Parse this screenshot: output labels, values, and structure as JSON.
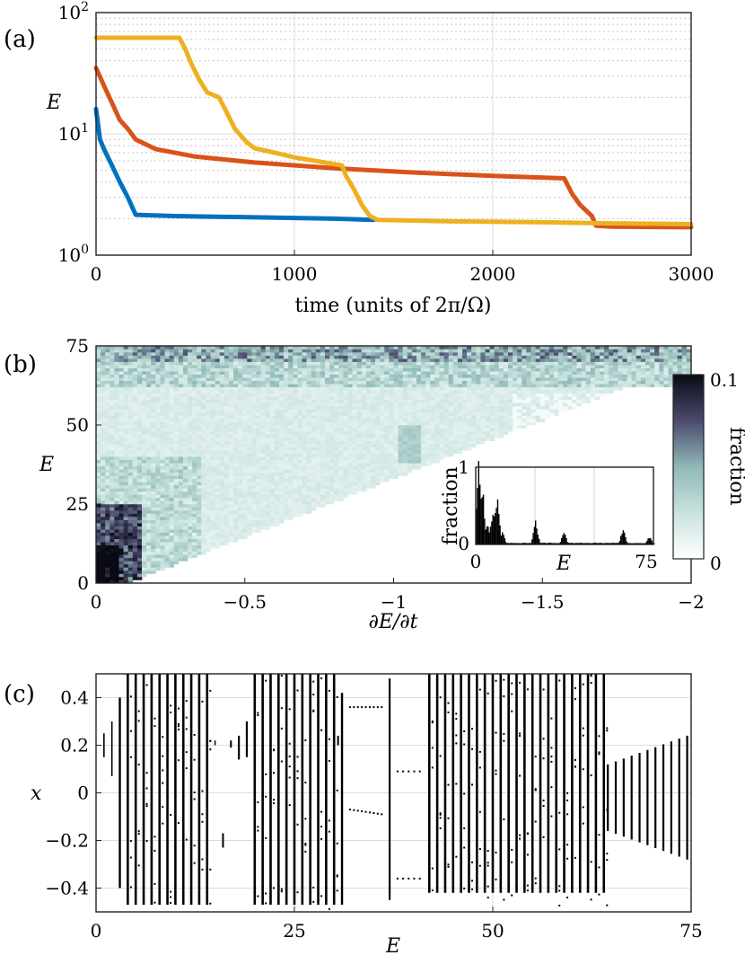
{
  "chart_data": [
    {
      "panel": "(a)",
      "type": "line",
      "xlabel": "time (units of 2π/Ω)",
      "ylabel": "E",
      "xlim": [
        0,
        3000
      ],
      "ylim": [
        1,
        100
      ],
      "yscale": "log",
      "grid": true,
      "x_ticks": [
        "0",
        "1000",
        "2000",
        "3000"
      ],
      "y_ticks": [
        {
          "base": "10",
          "exp": "0"
        },
        {
          "base": "10",
          "exp": "1"
        },
        {
          "base": "10",
          "exp": "2"
        }
      ],
      "series": [
        {
          "name": "blue",
          "color": "#0072bd",
          "x": [
            0,
            20,
            40,
            80,
            120,
            160,
            200,
            400,
            800,
            1200,
            1400
          ],
          "y": [
            16,
            9,
            7.5,
            5.5,
            4,
            3,
            2.15,
            2.1,
            2.05,
            2.0,
            1.95
          ]
        },
        {
          "name": "orange",
          "color": "#d95319",
          "x": [
            0,
            40,
            80,
            120,
            160,
            200,
            300,
            500,
            800,
            1200,
            1600,
            2000,
            2360,
            2400,
            2440,
            2500,
            2520,
            2600,
            3000
          ],
          "y": [
            35,
            25,
            18,
            13,
            11,
            9,
            7.5,
            6.5,
            5.8,
            5.2,
            4.8,
            4.5,
            4.3,
            3.2,
            2.6,
            2.1,
            1.75,
            1.72,
            1.7
          ]
        },
        {
          "name": "yellow",
          "color": "#edb120",
          "x": [
            0,
            420,
            450,
            480,
            520,
            560,
            620,
            650,
            700,
            760,
            800,
            900,
            1000,
            1100,
            1240,
            1260,
            1300,
            1340,
            1380,
            1420,
            1800,
            2200,
            2600,
            3000
          ],
          "y": [
            62,
            62,
            50,
            38,
            28,
            22,
            20,
            16,
            11,
            8.5,
            7.6,
            7,
            6.4,
            6,
            5.5,
            4.5,
            3.5,
            2.6,
            2.1,
            1.95,
            1.9,
            1.87,
            1.83,
            1.8
          ]
        }
      ]
    },
    {
      "panel": "(b)",
      "type": "heatmap",
      "xlabel": "∂E/∂t",
      "ylabel": "E",
      "xlim": [
        0,
        -2
      ],
      "ylim": [
        0,
        75
      ],
      "x_ticks": [
        "0",
        "−0.5",
        "−1",
        "−1.5",
        "−2"
      ],
      "y_ticks": [
        "0",
        "25",
        "50",
        "75"
      ],
      "colorbar": {
        "label": "fraction",
        "min": 0,
        "max": 0.1,
        "tick_labels": [
          "0",
          "0.1"
        ]
      },
      "inset": {
        "type": "bar",
        "xlabel": "E",
        "ylabel": "fraction",
        "xlim": [
          0,
          75
        ],
        "ylim": [
          0,
          1
        ],
        "x_ticks": [
          "0",
          "75"
        ],
        "y_ticks": [
          "0",
          "1"
        ],
        "peaks": [
          {
            "center": 1,
            "height": 1.0
          },
          {
            "center": 2.5,
            "height": 0.7
          },
          {
            "center": 4.5,
            "height": 0.25
          },
          {
            "center": 6.5,
            "height": 0.3
          },
          {
            "center": 7.5,
            "height": 0.45
          },
          {
            "center": 9,
            "height": 0.55
          },
          {
            "center": 11,
            "height": 0.15
          },
          {
            "center": 25,
            "height": 0.3
          },
          {
            "center": 37,
            "height": 0.15
          },
          {
            "center": 62,
            "height": 0.2
          },
          {
            "center": 73,
            "height": 0.1
          }
        ]
      }
    },
    {
      "panel": "(c)",
      "type": "scatter",
      "xlabel": "E",
      "ylabel": "x",
      "xlim": [
        0,
        75
      ],
      "ylim": [
        -0.5,
        0.5
      ],
      "grid": true,
      "x_ticks": [
        "0",
        "25",
        "50",
        "75"
      ],
      "y_ticks": [
        "−0.4",
        "−0.2",
        "0",
        "0.2",
        "0.4"
      ]
    }
  ]
}
